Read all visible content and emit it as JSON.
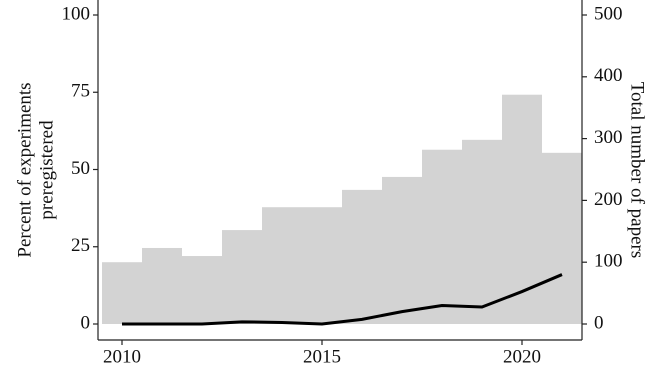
{
  "chart_data": {
    "type": "bar",
    "x": [
      2010,
      2011,
      2012,
      2013,
      2014,
      2015,
      2016,
      2017,
      2018,
      2019,
      2020,
      2021
    ],
    "series": [
      {
        "type": "bar",
        "axis": "y2",
        "color": "#d3d3d3",
        "values": [
          100,
          123,
          110,
          152,
          189,
          189,
          217,
          238,
          282,
          298,
          371,
          277
        ]
      },
      {
        "type": "line",
        "axis": "y",
        "color": "#000000",
        "values": [
          0,
          0,
          0,
          0.7,
          0.5,
          0,
          1.5,
          4,
          6,
          5.5,
          10.5,
          16
        ]
      }
    ],
    "ylabel": [
      "Percent of experiments",
      "preregistered"
    ],
    "y2label": "Total number of papers",
    "xlim": [
      2009.4,
      2021.5
    ],
    "xticks": [
      2010,
      2015,
      2020
    ],
    "ylim": [
      0,
      100
    ],
    "yticks": [
      0,
      25,
      50,
      75,
      100
    ],
    "y2lim": [
      0,
      500
    ],
    "y2ticks": [
      0,
      100,
      200,
      300,
      400,
      500
    ],
    "grid": false
  }
}
